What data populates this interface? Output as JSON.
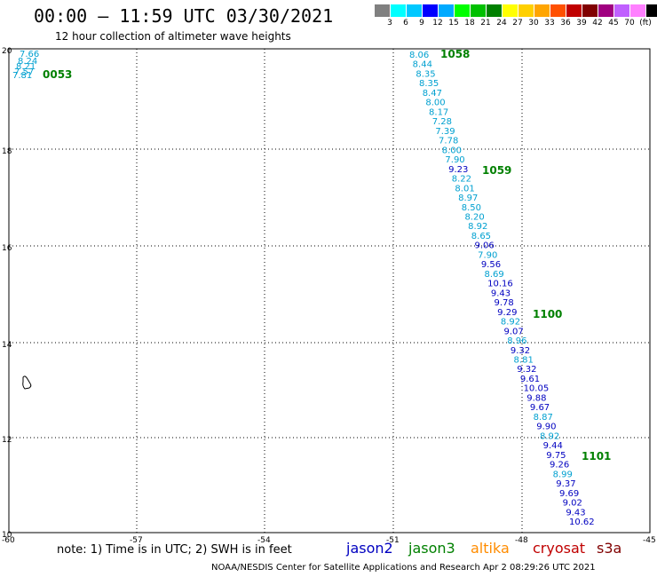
{
  "header": {
    "title": "00:00 – 11:59 UTC 03/30/2021",
    "subtitle": "12 hour collection of altimeter wave heights"
  },
  "colorbar": {
    "colors": [
      "#808080",
      "#00ffff",
      "#00c8ff",
      "#0000ff",
      "#00aaff",
      "#00ff00",
      "#00c000",
      "#008000",
      "#ffff00",
      "#ffd000",
      "#ffa500",
      "#ff5000",
      "#c00000",
      "#800000",
      "#a00080",
      "#c060ff",
      "#ff80ff",
      "#000000"
    ],
    "labels": [
      "3",
      "6",
      "9",
      "12",
      "15",
      "18",
      "21",
      "24",
      "27",
      "30",
      "33",
      "36",
      "39",
      "42",
      "45",
      "70",
      "(ft)"
    ]
  },
  "axes": {
    "x_ticks": [
      "-60",
      "-57",
      "-54",
      "-51",
      "-48",
      "-45"
    ],
    "y_ticks": [
      "20",
      "18",
      "16",
      "14",
      "12",
      "10"
    ]
  },
  "passes": [
    {
      "label": "1058"
    },
    {
      "label": "1059"
    },
    {
      "label": "1100"
    },
    {
      "label": "1101"
    },
    {
      "label": "0053"
    }
  ],
  "points_main": [
    {
      "v": "8.06",
      "c": "#00a0d0"
    },
    {
      "v": "8.44",
      "c": "#00a0d0"
    },
    {
      "v": "8.35",
      "c": "#00a0d0"
    },
    {
      "v": "8.35",
      "c": "#00a0d0"
    },
    {
      "v": "8.47",
      "c": "#00a0d0"
    },
    {
      "v": "8.00",
      "c": "#00a0d0"
    },
    {
      "v": "8.17",
      "c": "#00a0d0"
    },
    {
      "v": "7.28",
      "c": "#00a0d0"
    },
    {
      "v": "7.39",
      "c": "#00a0d0"
    },
    {
      "v": "7.78",
      "c": "#00a0d0"
    },
    {
      "v": "8.00",
      "c": "#00a0d0"
    },
    {
      "v": "7.90",
      "c": "#00a0d0"
    },
    {
      "v": "9.23",
      "c": "#0000c0"
    },
    {
      "v": "8.22",
      "c": "#00a0d0"
    },
    {
      "v": "8.01",
      "c": "#00a0d0"
    },
    {
      "v": "8.97",
      "c": "#00a0d0"
    },
    {
      "v": "8.50",
      "c": "#00a0d0"
    },
    {
      "v": "8.20",
      "c": "#00a0d0"
    },
    {
      "v": "8.92",
      "c": "#00a0d0"
    },
    {
      "v": "8.65",
      "c": "#00a0d0"
    },
    {
      "v": "9.06",
      "c": "#0000c0"
    },
    {
      "v": "7.90",
      "c": "#00a0d0"
    },
    {
      "v": "9.56",
      "c": "#0000c0"
    },
    {
      "v": "8.69",
      "c": "#00a0d0"
    },
    {
      "v": "10.16",
      "c": "#0000c0"
    },
    {
      "v": "9.43",
      "c": "#0000c0"
    },
    {
      "v": "9.78",
      "c": "#0000c0"
    },
    {
      "v": "9.29",
      "c": "#0000c0"
    },
    {
      "v": "8.92",
      "c": "#00a0d0"
    },
    {
      "v": "9.07",
      "c": "#0000c0"
    },
    {
      "v": "8.96",
      "c": "#00a0d0"
    },
    {
      "v": "9.32",
      "c": "#0000c0"
    },
    {
      "v": "8.81",
      "c": "#00a0d0"
    },
    {
      "v": "9.32",
      "c": "#0000c0"
    },
    {
      "v": "9.61",
      "c": "#0000c0"
    },
    {
      "v": "10.05",
      "c": "#0000c0"
    },
    {
      "v": "9.88",
      "c": "#0000c0"
    },
    {
      "v": "9.67",
      "c": "#0000c0"
    },
    {
      "v": "8.87",
      "c": "#00a0d0"
    },
    {
      "v": "9.90",
      "c": "#0000c0"
    },
    {
      "v": "8.92",
      "c": "#00a0d0"
    },
    {
      "v": "9.44",
      "c": "#0000c0"
    },
    {
      "v": "9.75",
      "c": "#0000c0"
    },
    {
      "v": "9.26",
      "c": "#0000c0"
    },
    {
      "v": "8.99",
      "c": "#00a0d0"
    },
    {
      "v": "9.37",
      "c": "#0000c0"
    },
    {
      "v": "9.69",
      "c": "#0000c0"
    },
    {
      "v": "9.02",
      "c": "#0000c0"
    },
    {
      "v": "9.43",
      "c": "#0000c0"
    },
    {
      "v": "10.62",
      "c": "#0000c0"
    }
  ],
  "points_corner": [
    {
      "v": "7.66",
      "c": "#00a0d0"
    },
    {
      "v": "8.24",
      "c": "#00a0d0"
    },
    {
      "v": "8.21",
      "c": "#00a0d0"
    },
    {
      "v": "7.57",
      "c": "#00a0d0"
    },
    {
      "v": "7.81",
      "c": "#00a0d0"
    }
  ],
  "footer": {
    "note": "note: 1) Time is in UTC; 2) SWH is in feet",
    "satellites": [
      {
        "name": "jason2",
        "color": "#0000c0"
      },
      {
        "name": "jason3",
        "color": "#008000"
      },
      {
        "name": "altika",
        "color": "#ff8c00"
      },
      {
        "name": "cryosat",
        "color": "#c00000"
      },
      {
        "name": "s3a",
        "color": "#800000"
      }
    ],
    "credit": "NOAA/NESDIS Center for Satellite Applications and Research   Apr  2 08:29:26 UTC 2021"
  }
}
